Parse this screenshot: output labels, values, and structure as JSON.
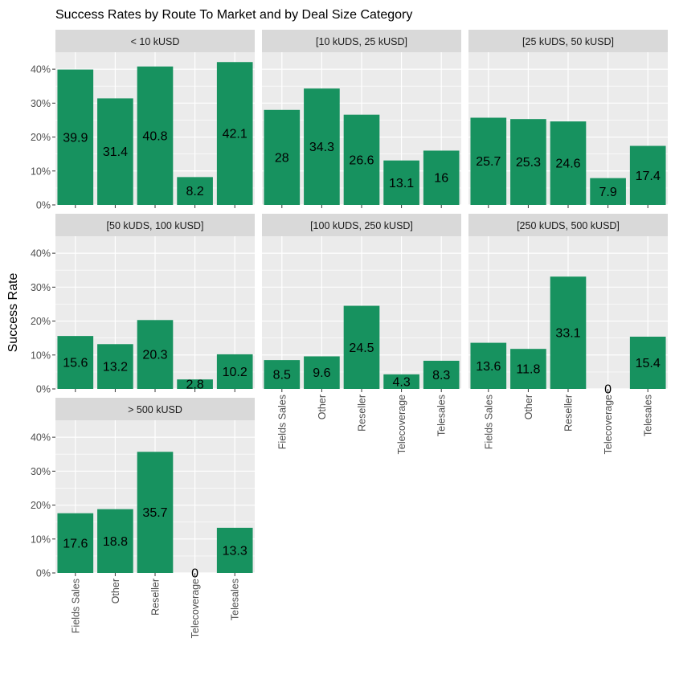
{
  "chart_data": {
    "type": "bar",
    "title": "Success Rates by Route To Market and by Deal Size Category",
    "xlabel": "",
    "ylabel": "Success Rate",
    "categories": [
      "Fields Sales",
      "Other",
      "Reseller",
      "Telecoverage",
      "Telesales"
    ],
    "ylim": [
      0,
      45
    ],
    "yticks": [
      0,
      10,
      20,
      30,
      40
    ],
    "ytick_labels": [
      "0%",
      "10%",
      "20%",
      "30%",
      "40%"
    ],
    "bar_color": "#17925f",
    "panel_bg": "#ebebeb",
    "strip_bg": "#d9d9d9",
    "grid_color": "#ffffff",
    "grid": true,
    "legend": "none",
    "panels": [
      {
        "label": "< 10 kUSD",
        "values": [
          39.9,
          31.4,
          40.8,
          8.2,
          42.1
        ],
        "data_labels": [
          "39.9",
          "31.4",
          "40.8",
          "8.2",
          "42.1"
        ]
      },
      {
        "label": "[10 kUDS, 25 kUSD]",
        "values": [
          28,
          34.3,
          26.6,
          13.1,
          16
        ],
        "data_labels": [
          "28",
          "34.3",
          "26.6",
          "13.1",
          "16"
        ]
      },
      {
        "label": "[25 kUDS, 50 kUSD]",
        "values": [
          25.7,
          25.3,
          24.6,
          7.9,
          17.4
        ],
        "data_labels": [
          "25.7",
          "25.3",
          "24.6",
          "7.9",
          "17.4"
        ]
      },
      {
        "label": "[50 kUDS, 100 kUSD]",
        "values": [
          15.6,
          13.2,
          20.3,
          2.8,
          10.2
        ],
        "data_labels": [
          "15.6",
          "13.2",
          "20.3",
          "2.8",
          "10.2"
        ]
      },
      {
        "label": "[100 kUDS, 250 kUSD]",
        "values": [
          8.5,
          9.6,
          24.5,
          4.3,
          8.3
        ],
        "data_labels": [
          "8.5",
          "9.6",
          "24.5",
          "4.3",
          "8.3"
        ]
      },
      {
        "label": "[250 kUDS, 500 kUSD]",
        "values": [
          13.6,
          11.8,
          33.1,
          0,
          15.4
        ],
        "data_labels": [
          "13.6",
          "11.8",
          "33.1",
          "0",
          "15.4"
        ]
      },
      {
        "label": "> 500 kUSD",
        "values": [
          17.6,
          18.8,
          35.7,
          0,
          13.3
        ],
        "data_labels": [
          "17.6",
          "18.8",
          "35.7",
          "0",
          "13.3"
        ]
      }
    ]
  }
}
